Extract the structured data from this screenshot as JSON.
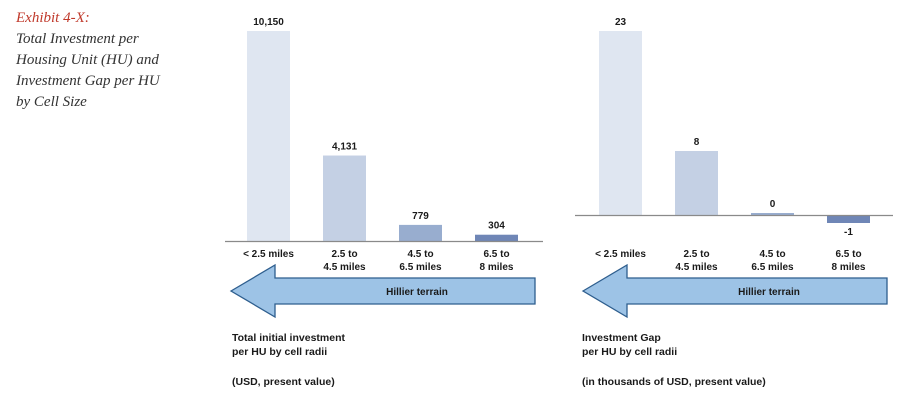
{
  "exhibit": {
    "label": "Exhibit 4-X:",
    "title_lines": [
      "Total Investment per",
      "Housing Unit (HU) and",
      "Investment Gap per HU",
      "by Cell Size"
    ]
  },
  "colors": {
    "bar_shades": [
      "#dfe6f1",
      "#c4d0e4",
      "#98adcf",
      "#6f86b6"
    ],
    "arrow_fill": "#9dc3e6",
    "arrow_stroke": "#2e5e8e",
    "axis": "#8a8a8a"
  },
  "chart_data": [
    {
      "type": "bar",
      "categories": [
        [
          "< 2.5 miles"
        ],
        [
          "2.5 to",
          "4.5 miles"
        ],
        [
          "4.5 to",
          "6.5 miles"
        ],
        [
          "6.5 to",
          "8 miles"
        ]
      ],
      "values": [
        10150,
        4131,
        779,
        304
      ],
      "value_labels": [
        "10,150",
        "4,131",
        "779",
        "304"
      ],
      "ylim": [
        0,
        10150
      ],
      "arrow_label": "Hillier terrain",
      "caption_lines": [
        "Total initial investment",
        "per HU by cell radii"
      ],
      "caption_note": "(USD, present value)"
    },
    {
      "type": "bar",
      "categories": [
        [
          "< 2.5 miles"
        ],
        [
          "2.5 to",
          "4.5 miles"
        ],
        [
          "4.5 to",
          "6.5 miles"
        ],
        [
          "6.5 to",
          "8 miles"
        ]
      ],
      "values": [
        23,
        8,
        0,
        -1
      ],
      "value_labels": [
        "23",
        "8",
        "0",
        "-1"
      ],
      "ylim": [
        -1,
        23
      ],
      "arrow_label": "Hillier terrain",
      "caption_lines": [
        "Investment Gap",
        "per HU by cell radii"
      ],
      "caption_note": "(in thousands of USD, present value)"
    }
  ]
}
